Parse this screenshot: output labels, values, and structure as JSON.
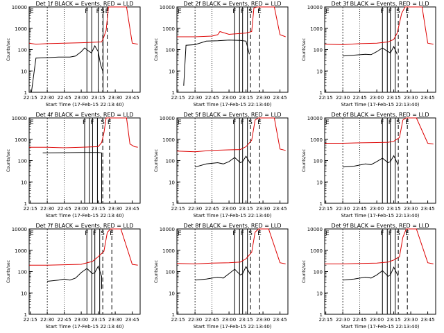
{
  "colors": {
    "events": "#000000",
    "lld": "#dd0000",
    "axis": "#000000"
  },
  "chart_data": [
    {
      "type": "line",
      "title": "Det 1f BLACK = Events, RED = LLD",
      "xlabel": "Start Time (17-Feb-15 22:13:40)",
      "ylabel": "Counts/sec",
      "xticks": [
        "22:15",
        "22:30",
        "22:45",
        "23:00",
        "23:15",
        "23:30",
        "23:45"
      ],
      "yticks": [
        "1",
        "10",
        "100",
        "1000",
        "10000"
      ],
      "ylim": [
        1,
        10000
      ],
      "yscale": "log",
      "markers": [
        {
          "label": "E",
          "t": "22:14"
        },
        {
          "label": "F",
          "t": "23:05"
        },
        {
          "label": "F",
          "t": "23:15"
        },
        {
          "label": "S",
          "t": "23:19"
        },
        {
          "label": "E",
          "t": "23:23"
        }
      ],
      "series": [
        {
          "name": "Events",
          "color": "#000000",
          "x": [
            "22:16",
            "22:20",
            "22:30",
            "22:40",
            "22:50",
            "22:55",
            "23:00",
            "23:03",
            "23:06",
            "23:09",
            "23:12",
            "23:15",
            "23:17",
            "23:19"
          ],
          "y": [
            1,
            40,
            42,
            45,
            45,
            50,
            80,
            120,
            90,
            70,
            150,
            80,
            20,
            10
          ]
        },
        {
          "name": "LLD",
          "color": "#dd0000",
          "x": [
            "22:14",
            "22:20",
            "22:30",
            "22:45",
            "23:00",
            "23:10",
            "23:18",
            "23:20",
            "23:22",
            "23:24",
            "23:30",
            "23:40",
            "23:45",
            "23:50"
          ],
          "y": [
            200,
            180,
            190,
            200,
            210,
            220,
            230,
            400,
            800,
            10000,
            10000,
            10000,
            200,
            180
          ]
        }
      ]
    },
    {
      "type": "line",
      "title": "Det 2f BLACK = Events, RED = LLD",
      "xlabel": "Start Time (17-Feb-15 22:13:40)",
      "ylabel": "Counts/sec",
      "xticks": [
        "22:15",
        "22:30",
        "22:45",
        "23:00",
        "23:15",
        "23:30",
        "23:45"
      ],
      "yticks": [
        "1",
        "10",
        "100",
        "1000",
        "10000"
      ],
      "ylim": [
        1,
        10000
      ],
      "yscale": "log",
      "markers": [
        {
          "label": "E",
          "t": "22:14"
        },
        {
          "label": "F",
          "t": "23:05"
        },
        {
          "label": "F",
          "t": "23:12"
        },
        {
          "label": "S",
          "t": "23:19"
        },
        {
          "label": "E",
          "t": "23:27"
        }
      ],
      "series": [
        {
          "name": "Events",
          "color": "#000000",
          "x": [
            "22:20",
            "22:22",
            "22:30",
            "22:40",
            "22:50",
            "23:00",
            "23:10",
            "23:15",
            "23:18"
          ],
          "y": [
            2,
            160,
            170,
            250,
            260,
            280,
            270,
            250,
            60
          ]
        },
        {
          "name": "LLD",
          "color": "#dd0000",
          "x": [
            "22:14",
            "22:30",
            "22:45",
            "22:50",
            "22:52",
            "23:00",
            "23:15",
            "23:20",
            "23:22",
            "23:25",
            "23:35",
            "23:40",
            "23:45",
            "23:50"
          ],
          "y": [
            400,
            400,
            430,
            500,
            700,
            520,
            600,
            700,
            9000,
            10000,
            10000,
            10000,
            500,
            400
          ]
        }
      ]
    },
    {
      "type": "line",
      "title": "Det 3f BLACK = Events, RED = LLD",
      "xlabel": "Start Time (17-Feb-15 22:13:40)",
      "ylabel": "Counts/sec",
      "xticks": [
        "22:15",
        "22:30",
        "22:45",
        "23:00",
        "23:15",
        "23:30",
        "23:45"
      ],
      "yticks": [
        "1",
        "10",
        "100",
        "1000",
        "10000"
      ],
      "ylim": [
        1,
        10000
      ],
      "yscale": "log",
      "markers": [
        {
          "label": "E",
          "t": "22:14"
        },
        {
          "label": "F",
          "t": "23:05"
        },
        {
          "label": "F",
          "t": "23:12"
        },
        {
          "label": "S",
          "t": "23:19"
        },
        {
          "label": "E",
          "t": "23:27"
        }
      ],
      "series": [
        {
          "name": "Events",
          "color": "#000000",
          "x": [
            "22:30",
            "22:40",
            "22:50",
            "22:55",
            "23:00",
            "23:05",
            "23:10",
            "23:12",
            "23:15",
            "23:18"
          ],
          "y": [
            50,
            55,
            60,
            58,
            80,
            120,
            80,
            70,
            140,
            60
          ]
        },
        {
          "name": "LLD",
          "color": "#dd0000",
          "x": [
            "22:14",
            "22:30",
            "22:45",
            "23:00",
            "23:10",
            "23:15",
            "23:18",
            "23:22",
            "23:25",
            "23:30",
            "23:40",
            "23:45",
            "23:50"
          ],
          "y": [
            180,
            170,
            190,
            200,
            230,
            300,
            600,
            5000,
            10000,
            10000,
            10000,
            200,
            180
          ]
        }
      ]
    },
    {
      "type": "line",
      "title": "Det 4f BLACK = Events, RED = LLD",
      "xlabel": "Start Time (17-Feb-15 22:13:40)",
      "ylabel": "Counts/sec",
      "xticks": [
        "22:15",
        "22:30",
        "22:45",
        "23:00",
        "23:15",
        "23:30",
        "23:45"
      ],
      "yticks": [
        "1",
        "10",
        "100",
        "1000",
        "10000"
      ],
      "ylim": [
        1,
        10000
      ],
      "yscale": "log",
      "markers": [
        {
          "label": "E",
          "t": "22:14"
        },
        {
          "label": "F",
          "t": "23:03"
        },
        {
          "label": "F",
          "t": "23:10"
        },
        {
          "label": "S",
          "t": "23:19"
        },
        {
          "label": "E",
          "t": "23:25"
        }
      ],
      "series": [
        {
          "name": "Events",
          "color": "#000000",
          "x": [
            "22:26",
            "22:30",
            "22:45",
            "23:00",
            "23:10",
            "23:15",
            "23:18",
            "23:18"
          ],
          "y": [
            230,
            230,
            235,
            240,
            240,
            240,
            230,
            1
          ]
        },
        {
          "name": "LLD",
          "color": "#dd0000",
          "x": [
            "22:14",
            "22:30",
            "22:45",
            "23:00",
            "23:15",
            "23:18",
            "23:20",
            "23:22",
            "23:24",
            "23:30",
            "23:40",
            "23:43",
            "23:47",
            "23:50"
          ],
          "y": [
            420,
            420,
            400,
            420,
            450,
            700,
            2000,
            10000,
            10000,
            10000,
            10000,
            600,
            450,
            420
          ]
        }
      ]
    },
    {
      "type": "line",
      "title": "Det 5f BLACK = Events, RED = LLD",
      "xlabel": "Start Time (17-Feb-15 22:13:40)",
      "ylabel": "Counts/sec",
      "xticks": [
        "22:15",
        "22:30",
        "22:45",
        "23:00",
        "23:15",
        "23:30",
        "23:45"
      ],
      "yticks": [
        "1",
        "10",
        "100",
        "1000",
        "10000"
      ],
      "ylim": [
        1,
        10000
      ],
      "yscale": "log",
      "markers": [
        {
          "label": "E",
          "t": "22:14"
        },
        {
          "label": "F",
          "t": "23:05"
        },
        {
          "label": "F",
          "t": "23:12"
        },
        {
          "label": "S",
          "t": "23:19"
        },
        {
          "label": "E",
          "t": "23:27"
        }
      ],
      "series": [
        {
          "name": "Events",
          "color": "#000000",
          "x": [
            "22:30",
            "22:40",
            "22:50",
            "22:55",
            "23:00",
            "23:05",
            "23:10",
            "23:12",
            "23:15",
            "23:19"
          ],
          "y": [
            50,
            70,
            80,
            70,
            90,
            140,
            80,
            90,
            160,
            70
          ]
        },
        {
          "name": "LLD",
          "color": "#dd0000",
          "x": [
            "22:14",
            "22:30",
            "22:45",
            "23:00",
            "23:10",
            "23:15",
            "23:20",
            "23:23",
            "23:26",
            "23:30",
            "23:40",
            "23:45",
            "23:50"
          ],
          "y": [
            280,
            260,
            300,
            320,
            330,
            450,
            900,
            8000,
            10000,
            10000,
            10000,
            350,
            300
          ]
        }
      ]
    },
    {
      "type": "line",
      "title": "Det 6f BLACK = Events, RED = LLD",
      "xlabel": "Start Time (17-Feb-15 22:13:40)",
      "ylabel": "Counts/sec",
      "xticks": [
        "22:15",
        "22:30",
        "22:45",
        "23:00",
        "23:15",
        "23:30",
        "23:45"
      ],
      "yticks": [
        "1",
        "10",
        "100",
        "1000",
        "10000"
      ],
      "ylim": [
        1,
        10000
      ],
      "yscale": "log",
      "markers": [
        {
          "label": "E",
          "t": "22:14"
        },
        {
          "label": "F",
          "t": "23:05"
        },
        {
          "label": "F",
          "t": "23:12"
        },
        {
          "label": "S",
          "t": "23:19"
        },
        {
          "label": "E",
          "t": "23:27"
        }
      ],
      "series": [
        {
          "name": "Events",
          "color": "#000000",
          "x": [
            "22:30",
            "22:40",
            "22:50",
            "22:55",
            "23:00",
            "23:05",
            "23:10",
            "23:12",
            "23:15",
            "23:19"
          ],
          "y": [
            50,
            55,
            70,
            65,
            90,
            130,
            80,
            90,
            170,
            60
          ]
        },
        {
          "name": "LLD",
          "color": "#dd0000",
          "x": [
            "22:14",
            "22:30",
            "22:45",
            "23:00",
            "23:10",
            "23:15",
            "23:20",
            "23:23",
            "23:26",
            "23:35",
            "23:45",
            "23:50"
          ],
          "y": [
            650,
            650,
            680,
            700,
            720,
            800,
            1200,
            8000,
            10000,
            10000,
            650,
            600
          ]
        }
      ]
    },
    {
      "type": "line",
      "title": "Det 7f BLACK = Events, RED = LLD",
      "xlabel": "Start Time (17-Feb-15 22:13:40)",
      "ylabel": "Counts/sec",
      "xticks": [
        "22:15",
        "22:30",
        "22:45",
        "23:00",
        "23:15",
        "23:30",
        "23:45"
      ],
      "yticks": [
        "1",
        "10",
        "100",
        "1000",
        "10000"
      ],
      "ylim": [
        1,
        10000
      ],
      "yscale": "log",
      "markers": [
        {
          "label": "E",
          "t": "22:14"
        },
        {
          "label": "F",
          "t": "23:05"
        },
        {
          "label": "F",
          "t": "23:12"
        },
        {
          "label": "S",
          "t": "23:19"
        },
        {
          "label": "E",
          "t": "23:27"
        }
      ],
      "series": [
        {
          "name": "Events",
          "color": "#000000",
          "x": [
            "22:30",
            "22:40",
            "22:45",
            "22:50",
            "22:55",
            "23:00",
            "23:05",
            "23:10",
            "23:12",
            "23:15",
            "23:18",
            "23:18"
          ],
          "y": [
            35,
            40,
            45,
            40,
            50,
            90,
            140,
            80,
            90,
            180,
            60,
            15
          ]
        },
        {
          "name": "LLD",
          "color": "#dd0000",
          "x": [
            "22:14",
            "22:30",
            "22:45",
            "23:00",
            "23:10",
            "23:15",
            "23:20",
            "23:23",
            "23:26",
            "23:35",
            "23:45",
            "23:50"
          ],
          "y": [
            200,
            200,
            210,
            220,
            300,
            500,
            900,
            7000,
            10000,
            10000,
            220,
            200
          ]
        }
      ]
    },
    {
      "type": "line",
      "title": "Det 8f BLACK = Events, RED = LLD",
      "xlabel": "Start Time (17-Feb-15 22:13:40)",
      "ylabel": "Counts/sec",
      "xticks": [
        "22:15",
        "22:30",
        "22:45",
        "23:00",
        "23:15",
        "23:30",
        "23:45"
      ],
      "yticks": [
        "1",
        "10",
        "100",
        "1000",
        "10000"
      ],
      "ylim": [
        1,
        10000
      ],
      "yscale": "log",
      "markers": [
        {
          "label": "E",
          "t": "22:14"
        },
        {
          "label": "F",
          "t": "23:05"
        },
        {
          "label": "F",
          "t": "23:12"
        },
        {
          "label": "S",
          "t": "23:19"
        },
        {
          "label": "E",
          "t": "23:27"
        }
      ],
      "series": [
        {
          "name": "Events",
          "color": "#000000",
          "x": [
            "22:30",
            "22:40",
            "22:50",
            "22:55",
            "23:00",
            "23:05",
            "23:10",
            "23:12",
            "23:15",
            "23:19"
          ],
          "y": [
            40,
            45,
            55,
            50,
            80,
            130,
            70,
            80,
            170,
            70
          ]
        },
        {
          "name": "LLD",
          "color": "#dd0000",
          "x": [
            "22:14",
            "22:30",
            "22:45",
            "23:00",
            "23:10",
            "23:15",
            "23:20",
            "23:23",
            "23:26",
            "23:35",
            "23:45",
            "23:50"
          ],
          "y": [
            240,
            230,
            250,
            260,
            280,
            400,
            800,
            7000,
            10000,
            10000,
            260,
            230
          ]
        }
      ]
    },
    {
      "type": "line",
      "title": "Det 9f BLACK = Events, RED = LLD",
      "xlabel": "Start Time (17-Feb-15 22:13:40)",
      "ylabel": "Counts/sec",
      "xticks": [
        "22:15",
        "22:30",
        "22:45",
        "23:00",
        "23:15",
        "23:30",
        "23:45"
      ],
      "yticks": [
        "1",
        "10",
        "100",
        "1000",
        "10000"
      ],
      "ylim": [
        1,
        10000
      ],
      "yscale": "log",
      "markers": [
        {
          "label": "E",
          "t": "22:14"
        },
        {
          "label": "F",
          "t": "23:05"
        },
        {
          "label": "F",
          "t": "23:12"
        },
        {
          "label": "S",
          "t": "23:19"
        },
        {
          "label": "E",
          "t": "23:27"
        }
      ],
      "series": [
        {
          "name": "Events",
          "color": "#000000",
          "x": [
            "22:30",
            "22:40",
            "22:50",
            "22:55",
            "23:00",
            "23:05",
            "23:10",
            "23:12",
            "23:15",
            "23:19"
          ],
          "y": [
            40,
            45,
            55,
            50,
            70,
            110,
            60,
            70,
            160,
            60
          ]
        },
        {
          "name": "LLD",
          "color": "#dd0000",
          "x": [
            "22:14",
            "22:30",
            "22:45",
            "23:00",
            "23:10",
            "23:15",
            "23:20",
            "23:23",
            "23:26",
            "23:35",
            "23:45",
            "23:50"
          ],
          "y": [
            230,
            230,
            240,
            250,
            280,
            350,
            500,
            4000,
            10000,
            10000,
            260,
            230
          ]
        }
      ]
    }
  ]
}
